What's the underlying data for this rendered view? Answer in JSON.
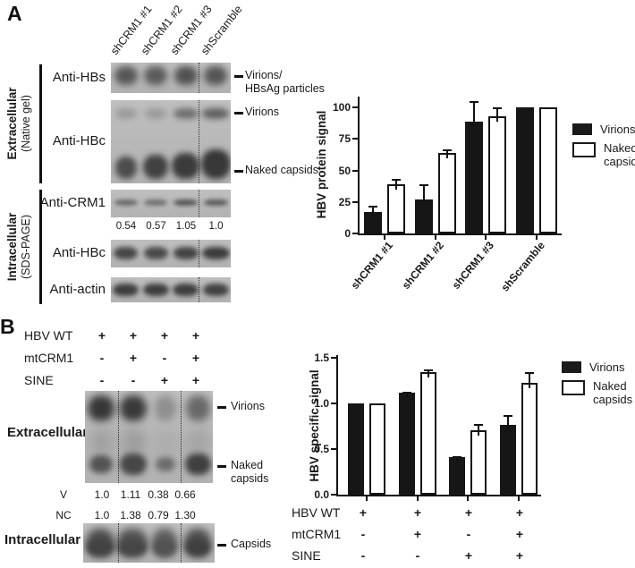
{
  "panel_a": {
    "label": "A",
    "lane_labels": [
      "shCRM1 #1",
      "shCRM1 #2",
      "shCRM1 #3",
      "shScramble"
    ],
    "sections": {
      "extracellular": {
        "title": "Extracellular",
        "subtitle": "(Native gel)"
      },
      "intracellular": {
        "title": "Intracellular",
        "subtitle": "(SDS-PAGE)"
      }
    },
    "antibodies": [
      "Anti-HBs",
      "Anti-HBc",
      "Anti-CRM1",
      "Anti-HBc",
      "Anti-actin"
    ],
    "crm1_quant_values": [
      "0.54",
      "0.57",
      "1.05",
      "1.0"
    ],
    "band_annotations": {
      "hbs_line1": "Virions/",
      "hbs_line2": "HBsAg particles",
      "virions": "Virions",
      "naked_capsids": "Naked capsids"
    }
  },
  "panel_b": {
    "label": "B",
    "conditions": [
      {
        "name": "HBV WT",
        "values": [
          "+",
          "+",
          "+",
          "+"
        ]
      },
      {
        "name": "mtCRM1",
        "values": [
          "-",
          "+",
          "-",
          "+"
        ]
      },
      {
        "name": "SINE",
        "values": [
          "-",
          "-",
          "+",
          "+"
        ]
      }
    ],
    "section_labels": {
      "extracellular": "Extracellular",
      "intracellular": "Intracellular"
    },
    "band_annotations": {
      "virions": "Virions",
      "naked_line1": "Naked",
      "naked_line2": "capsids",
      "capsids": "Capsids"
    },
    "quant_rows": [
      {
        "name": "V",
        "values": [
          "1.0",
          "1.11",
          "0.38",
          "0.66"
        ]
      },
      {
        "name": "NC",
        "values": [
          "1.0",
          "1.38",
          "0.79",
          "1.30"
        ]
      }
    ]
  },
  "chart_data": [
    {
      "id": "panel_a_chart",
      "type": "bar",
      "title": "",
      "xlabel": "",
      "ylabel": "HBV protein signal",
      "ylim": [
        0,
        100
      ],
      "yticks": [
        0,
        25,
        50,
        75,
        100
      ],
      "ytick_labels": [
        "0",
        "25",
        "50",
        "75",
        "100"
      ],
      "categories": [
        "shCRM1 #1",
        "shCRM1 #2",
        "shCRM1 #3",
        "shScramble"
      ],
      "series": [
        {
          "name": "Virions",
          "fill": "#1a1a1a",
          "values": [
            17,
            27,
            89,
            100
          ],
          "errors_plus": [
            5,
            12,
            16,
            0
          ]
        },
        {
          "name": "Naked capsids",
          "fill": "#ffffff",
          "values": [
            39,
            64,
            93,
            100
          ],
          "errors_plus": [
            4,
            3,
            7,
            0
          ]
        }
      ],
      "grid": false,
      "legend_position": "right"
    },
    {
      "id": "panel_b_chart",
      "type": "bar",
      "title": "",
      "xlabel": "",
      "ylabel": "HBV specific signal",
      "ylim": [
        0,
        1.5
      ],
      "yticks": [
        0,
        0.5,
        1,
        1.5
      ],
      "ytick_labels": [
        "0.0",
        "0.5",
        "1.0",
        "1.5"
      ],
      "categories": [
        "WT",
        "WT+mtCRM1",
        "WT+SINE",
        "WT+mtCRM1+SINE"
      ],
      "condition_matrix": {
        "rows": [
          "HBV WT",
          "mtCRM1",
          "SINE"
        ],
        "values": [
          [
            "+",
            "+",
            "+",
            "+"
          ],
          [
            "-",
            "+",
            "-",
            "+"
          ],
          [
            "-",
            "-",
            "+",
            "+"
          ]
        ]
      },
      "series": [
        {
          "name": "Virions",
          "fill": "#1a1a1a",
          "values": [
            1.0,
            1.12,
            0.41,
            0.76
          ],
          "errors_plus": [
            0,
            0.01,
            0.01,
            0.11
          ]
        },
        {
          "name": "Naked capsids",
          "fill": "#ffffff",
          "values": [
            1.0,
            1.34,
            0.71,
            1.23
          ],
          "errors_plus": [
            0,
            0.03,
            0.06,
            0.11
          ]
        }
      ],
      "grid": false,
      "legend_position": "right"
    }
  ]
}
